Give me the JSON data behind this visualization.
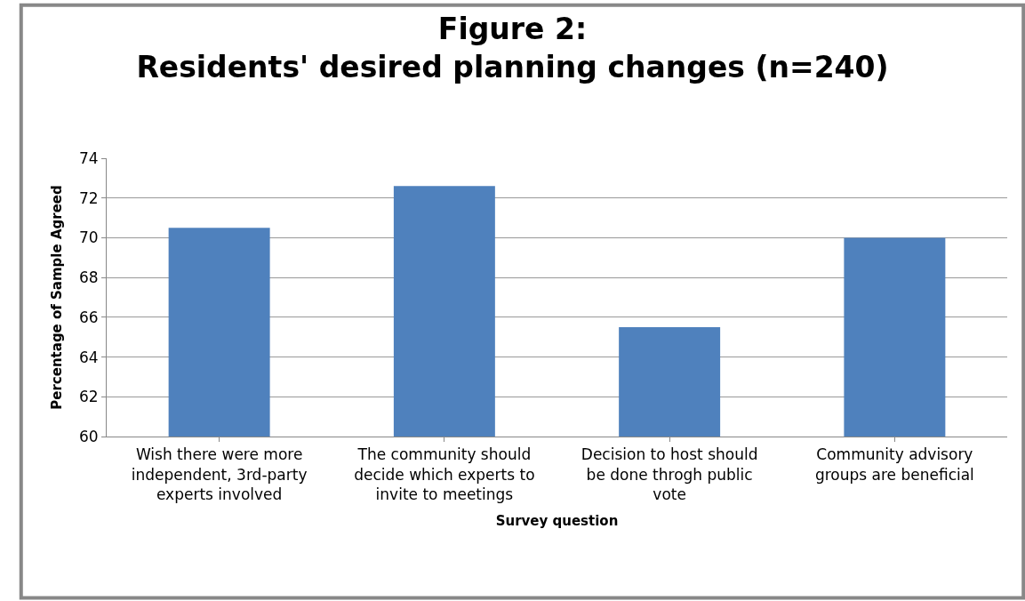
{
  "chart_data": {
    "type": "bar",
    "title": "Figure 2:\nResidents' desired planning changes (n=240)",
    "xlabel": "Survey question",
    "ylabel": "Percentage of Sample Agreed",
    "categories": [
      "Wish there were more independent, 3rd-party experts involved",
      "The community should decide which experts to invite to meetings",
      "Decision to host should be done throgh public vote",
      "Community advisory groups are beneficial"
    ],
    "values": [
      70.5,
      72.6,
      65.5,
      70.0
    ],
    "color": "#4f81bd",
    "ylim": [
      60,
      74
    ],
    "yticks": [
      60,
      62,
      64,
      66,
      68,
      70,
      72,
      74
    ],
    "grid": "y"
  }
}
